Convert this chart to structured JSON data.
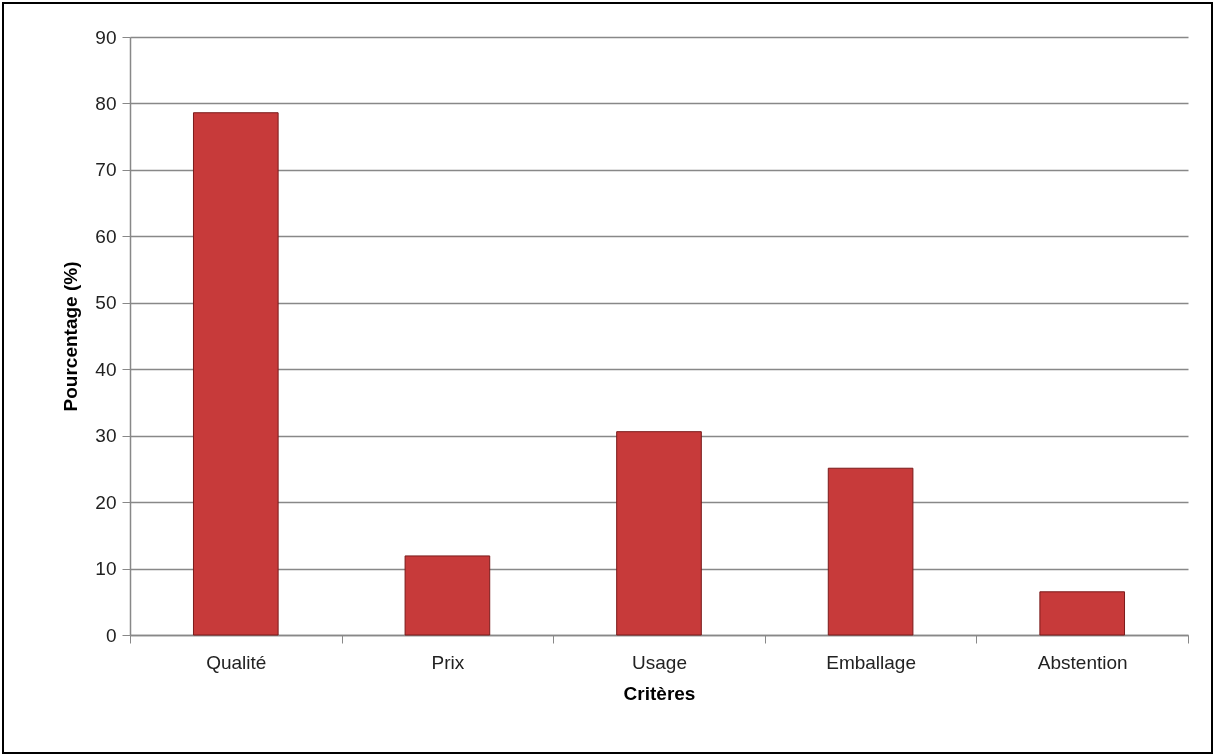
{
  "chart_data": {
    "type": "bar",
    "xlabel": "Critères",
    "ylabel": "Pourcentage (%)",
    "categories": [
      "Qualité",
      "Prix",
      "Usage",
      "Emballage",
      "Abstention"
    ],
    "values": [
      78.6,
      11.9,
      30.6,
      25.1,
      6.5
    ],
    "color": "#c73a3a",
    "ylim": [
      0,
      90
    ],
    "yticks": [
      0,
      10,
      20,
      30,
      40,
      50,
      60,
      70,
      80,
      90
    ],
    "grid": "y"
  }
}
